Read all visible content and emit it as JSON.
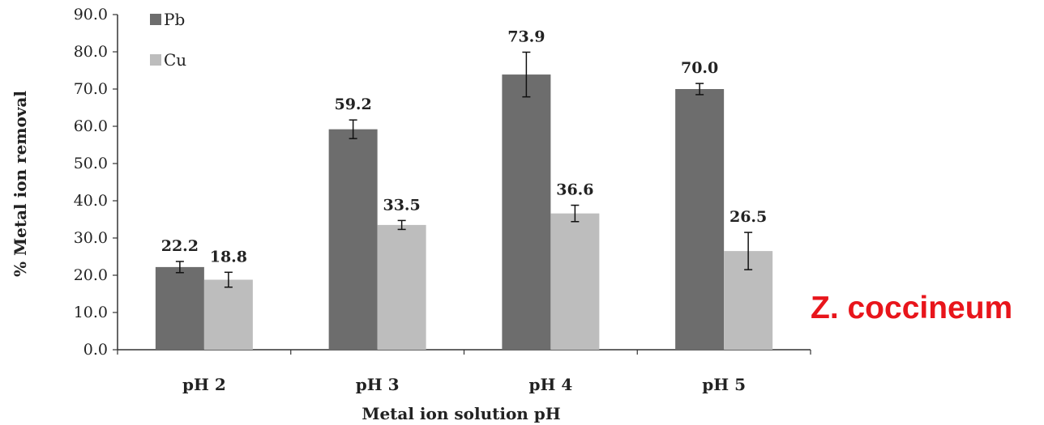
{
  "chart_data": {
    "type": "bar",
    "categories": [
      "pH 2",
      "pH 3",
      "pH 4",
      "pH 5"
    ],
    "series": [
      {
        "name": "Pb",
        "color": "#6d6d6d",
        "values": [
          22.2,
          59.2,
          73.9,
          70.0
        ],
        "errors": [
          1.5,
          2.5,
          6.0,
          1.5
        ]
      },
      {
        "name": "Cu",
        "color": "#bdbdbd",
        "values": [
          18.8,
          33.5,
          36.6,
          26.5
        ],
        "errors": [
          2.0,
          1.2,
          2.2,
          5.0
        ]
      }
    ],
    "data_labels": [
      [
        "22.2",
        "59.2",
        "73.9",
        "70.0"
      ],
      [
        "18.8",
        "33.5",
        "36.6",
        "26.5"
      ]
    ],
    "title": "",
    "xlabel": "Metal ion solution pH",
    "ylabel": "% Metal ion removal",
    "ylim": [
      0,
      90
    ],
    "yticks": [
      "0.0",
      "10.0",
      "20.0",
      "30.0",
      "40.0",
      "50.0",
      "60.0",
      "70.0",
      "80.0",
      "90.0"
    ],
    "grid": false,
    "legend": "top-left",
    "annotation": "Z. coccineum",
    "annotation_color": "#e8151b"
  }
}
